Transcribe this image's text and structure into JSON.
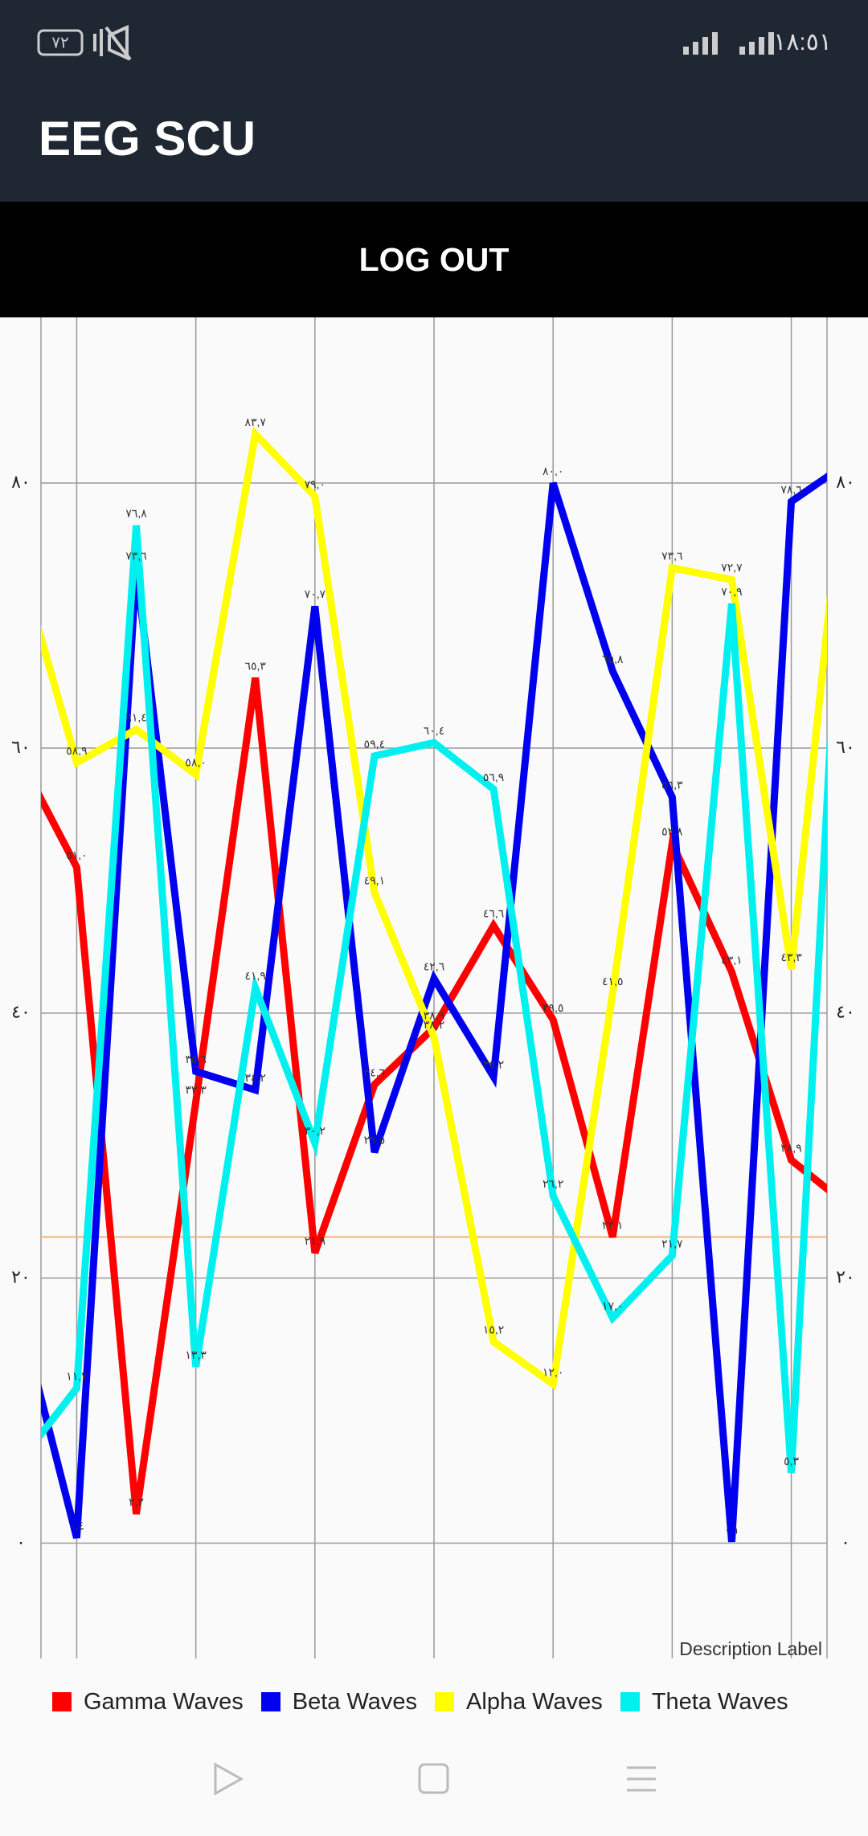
{
  "status_bar": {
    "battery": "٧٢",
    "time": "١٨:٥١"
  },
  "app_bar": {
    "title": "EEG SCU"
  },
  "button": {
    "label": "LOG OUT"
  },
  "chart_data": {
    "type": "line",
    "x": [
      0,
      1,
      2,
      3,
      4,
      5,
      6,
      7,
      8,
      9,
      10,
      11,
      12,
      13,
      14
    ],
    "xlim": [
      0.4,
      13.6
    ],
    "xticks": [
      1,
      3,
      5,
      7,
      9,
      11,
      13
    ],
    "ylim": [
      -8.7,
      92.5
    ],
    "yticks": [
      {
        "value": 0,
        "label": "٠"
      },
      {
        "value": 20,
        "label": "٢٠"
      },
      {
        "value": 40,
        "label": "٤٠"
      },
      {
        "value": 60,
        "label": "٦٠"
      },
      {
        "value": 80,
        "label": "٨٠"
      }
    ],
    "grid": true,
    "limit_line": {
      "value": 23.1,
      "color": "#f5b27a"
    },
    "description": "Description Label",
    "series": [
      {
        "name": "Gamma Waves",
        "color": "#ff0000",
        "values": [
          59.6,
          51.0,
          2.2,
          33.3,
          65.3,
          21.9,
          34.6,
          38.9,
          46.6,
          39.5,
          23.1,
          52.8,
          43.1,
          28.9,
          25.3
        ],
        "value_labels": [
          null,
          "٥١,٠",
          "٢,٢",
          "٣٣,٣",
          "٦٥,٣",
          "٢١,٩",
          "٣٤,٦",
          "٣٨,٩",
          "٤٦,٦",
          "٣٩,٥",
          "٢٣,١",
          "٥٢,٨",
          "٤٣,١",
          "٢٨,٩",
          null
        ]
      },
      {
        "name": "Beta Waves",
        "color": "#0000ee",
        "values": [
          18.0,
          0.4,
          73.6,
          35.6,
          34.2,
          70.7,
          29.5,
          42.6,
          35.2,
          80.0,
          65.8,
          56.3,
          0.1,
          78.6,
          81.7
        ],
        "value_labels": [
          null,
          "٠,٤",
          "٧٣,٦",
          "٣٥,٦",
          "٣٤,٢",
          "٧٠,٧",
          "٢٩,٥",
          "٤٢,٦",
          "٣٥,٢",
          "٨٠,٠",
          "٦٥,٨",
          "٥٦,٣",
          "٠,١",
          "٧٨,٦",
          null
        ]
      },
      {
        "name": "Alpha Waves",
        "color": "#ffff00",
        "values": [
          74.6,
          58.9,
          61.4,
          58.0,
          83.7,
          79.0,
          49.1,
          38.2,
          15.2,
          12.0,
          41.5,
          73.6,
          72.7,
          43.3,
          86.1
        ],
        "value_labels": [
          null,
          "٥٨,٩",
          "٦١,٤",
          "٥٨,٠",
          "٨٣,٧",
          "٧٩,٠",
          "٤٩,١",
          "٣٨,٢",
          "١٥,٢",
          "١٢,٠",
          "٤١,٥",
          "٧٣,٦",
          "٧٢,٧",
          "٤٣,٣",
          null
        ]
      },
      {
        "name": "Theta Waves",
        "color": "#00f0f0",
        "values": [
          5.9,
          11.7,
          76.8,
          13.3,
          41.9,
          30.2,
          59.4,
          60.4,
          56.9,
          26.2,
          17.0,
          21.7,
          70.9,
          5.3,
          89.5
        ],
        "value_labels": [
          null,
          "١١,٧",
          "٧٦,٨",
          "١٣,٣",
          "٤١,٩",
          "٣٠,٢",
          "٥٩,٤",
          "٦٠,٤",
          "٥٦,٩",
          "٢٦,٢",
          "١٧,٠",
          "٢١,٧",
          "٧٠,٩",
          "٥,٣",
          null
        ]
      }
    ]
  }
}
